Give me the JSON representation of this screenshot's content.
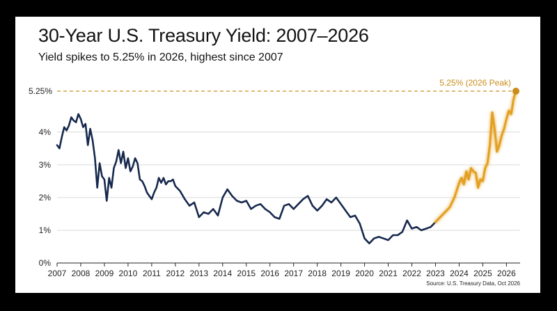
{
  "title": "30-Year U.S. Treasury Yield: 2007–2026",
  "subtitle": "Yield spikes to 5.25% in 2026, highest since 2007",
  "source": "Source: U.S. Treasury Data, Oct 2026",
  "colors": {
    "history": "#16284d",
    "recent": "#e3a020",
    "peak_label": "#c98d1a",
    "grid": "#d9d9d9"
  },
  "chart_data": {
    "type": "line",
    "title": "30-Year U.S. Treasury Yield: 2007–2026",
    "subtitle": "Yield spikes to 5.25% in 2026, highest since 2007",
    "xlabel": "",
    "ylabel": "",
    "xlim": [
      2007,
      2026.4
    ],
    "ylim": [
      0,
      5.25
    ],
    "x_ticks": [
      2007,
      2008,
      2009,
      2010,
      2011,
      2012,
      2013,
      2014,
      2015,
      2016,
      2017,
      2018,
      2019,
      2020,
      2021,
      2022,
      2023,
      2024,
      2025,
      2026
    ],
    "y_ticks": [
      {
        "value": 0,
        "label": "0%"
      },
      {
        "value": 1,
        "label": "1%"
      },
      {
        "value": 2,
        "label": "2%"
      },
      {
        "value": 3,
        "label": "3%"
      },
      {
        "value": 4,
        "label": "4%"
      }
    ],
    "grid": true,
    "series": [
      {
        "color": "#16284d",
        "x": [
          2007.0,
          2007.1,
          2007.2,
          2007.3,
          2007.4,
          2007.5,
          2007.6,
          2007.7,
          2007.8,
          2007.9,
          2008.0,
          2008.1,
          2008.2,
          2008.3,
          2008.4,
          2008.5,
          2008.6,
          2008.7,
          2008.8,
          2008.9,
          2009.0,
          2009.1,
          2009.2,
          2009.3,
          2009.4,
          2009.5,
          2009.6,
          2009.7,
          2009.8,
          2009.9,
          2010.0,
          2010.1,
          2010.2,
          2010.3,
          2010.4,
          2010.5,
          2010.6,
          2010.7,
          2010.8,
          2010.9,
          2011.0,
          2011.1,
          2011.2,
          2011.3,
          2011.4,
          2011.5,
          2011.6,
          2011.7,
          2011.8,
          2011.9,
          2012.0,
          2012.2,
          2012.4,
          2012.6,
          2012.8,
          2013.0,
          2013.2,
          2013.4,
          2013.6,
          2013.8,
          2014.0,
          2014.2,
          2014.4,
          2014.6,
          2014.8,
          2015.0,
          2015.2,
          2015.4,
          2015.6,
          2015.8,
          2016.0,
          2016.2,
          2016.4,
          2016.6,
          2016.8,
          2017.0,
          2017.2,
          2017.4,
          2017.6,
          2017.8,
          2018.0,
          2018.2,
          2018.4,
          2018.6,
          2018.8,
          2019.0,
          2019.2,
          2019.4,
          2019.6,
          2019.8,
          2020.0,
          2020.2,
          2020.4,
          2020.6,
          2020.8,
          2021.0,
          2021.2,
          2021.4,
          2021.6,
          2021.8,
          2022.0,
          2022.2,
          2022.4,
          2022.6,
          2022.8,
          2023.0
        ],
        "values": [
          3.6,
          3.5,
          3.85,
          4.15,
          4.05,
          4.2,
          4.45,
          4.35,
          4.3,
          4.55,
          4.4,
          4.15,
          4.25,
          3.6,
          4.1,
          3.75,
          3.2,
          2.3,
          3.05,
          2.65,
          2.55,
          1.9,
          2.6,
          2.3,
          2.9,
          3.1,
          3.45,
          3.05,
          3.4,
          2.9,
          3.2,
          2.8,
          2.95,
          3.2,
          3.05,
          2.55,
          2.5,
          2.35,
          2.15,
          2.05,
          1.95,
          2.15,
          2.3,
          2.6,
          2.45,
          2.6,
          2.4,
          2.5,
          2.5,
          2.55,
          2.35,
          2.2,
          1.95,
          1.75,
          1.85,
          1.4,
          1.55,
          1.5,
          1.65,
          1.45,
          2.0,
          2.25,
          2.05,
          1.9,
          1.85,
          1.9,
          1.65,
          1.75,
          1.8,
          1.65,
          1.55,
          1.4,
          1.35,
          1.75,
          1.8,
          1.65,
          1.8,
          1.95,
          2.05,
          1.75,
          1.6,
          1.75,
          1.95,
          1.85,
          2.0,
          1.8,
          1.6,
          1.4,
          1.45,
          1.2,
          0.75,
          0.6,
          0.75,
          0.8,
          0.75,
          0.7,
          0.85,
          0.85,
          0.95,
          1.3,
          1.05,
          1.1,
          1.0,
          1.05,
          1.1,
          1.25
        ]
      },
      {
        "color": "#e3a020",
        "x": [
          2023.0,
          2023.2,
          2023.4,
          2023.6,
          2023.8,
          2024.0,
          2024.1,
          2024.2,
          2024.3,
          2024.4,
          2024.5,
          2024.6,
          2024.7,
          2024.8,
          2024.9,
          2025.0,
          2025.1,
          2025.2,
          2025.3,
          2025.4,
          2025.5,
          2025.6,
          2025.7,
          2025.8,
          2025.9,
          2026.0,
          2026.1,
          2026.2,
          2026.3,
          2026.4
        ],
        "values": [
          1.25,
          1.4,
          1.55,
          1.7,
          2.0,
          2.45,
          2.6,
          2.4,
          2.8,
          2.55,
          2.9,
          2.8,
          2.75,
          2.3,
          2.55,
          2.5,
          2.9,
          3.05,
          3.6,
          4.6,
          4.1,
          3.4,
          3.6,
          3.9,
          4.1,
          4.4,
          4.65,
          4.55,
          5.0,
          5.25
        ]
      }
    ],
    "annotations": [
      {
        "type": "reference_line",
        "value": 5.25,
        "label": "5.25%"
      },
      {
        "type": "point",
        "x": 2026.4,
        "y": 5.25,
        "label": "5.25% (2026 Peak)"
      }
    ]
  }
}
